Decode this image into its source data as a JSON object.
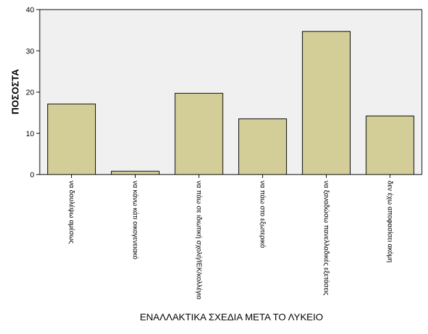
{
  "chart_data": {
    "type": "bar",
    "categories": [
      "να δουλέψω αμέσως",
      "να κάνω κάτι οικογενειακό",
      "να πάω σε ιδιωτική σχολή/ΙΕΚ/κολλέγιο",
      "να πάω στο εξωτερικό",
      "να ξαναδώσω πανελλαδικές εξετάσεις",
      "δεν έχω αποφασίσει ακόμη"
    ],
    "values": [
      17.1,
      0.8,
      19.7,
      13.5,
      34.7,
      14.2
    ],
    "xlabel": "ΕΝΑΛΛΑΚΤΙΚΑ ΣΧΕΔΙΑ ΜΕΤΑ ΤΟ ΛΥΚΕΙΟ",
    "ylabel": "ΠΟΣΟΣΤΑ",
    "ylim": [
      0,
      40
    ],
    "yticks": [
      0,
      10,
      20,
      30,
      40
    ],
    "grid": false,
    "colors": {
      "bar_fill": "#d3ce98",
      "bar_stroke": "#000000",
      "plot_background": "#f0f0f0"
    }
  }
}
